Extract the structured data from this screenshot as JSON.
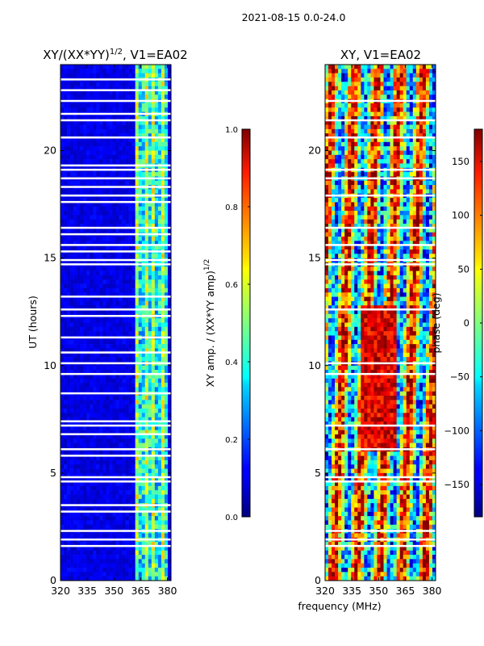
{
  "suptitle": "2021-08-15 0.0-24.0",
  "chart_data": [
    {
      "type": "heatmap",
      "title_main": "XY/(XX*YY)",
      "title_sup": "1/2",
      "title_tail": ", V1=EA02",
      "ylabel": "UT (hours)",
      "xlabel": "",
      "xlim": [
        320,
        382
      ],
      "ylim": [
        0,
        24
      ],
      "xticks": [
        "320",
        "335",
        "350",
        "365",
        "380"
      ],
      "xtick_values": [
        320,
        335,
        350,
        365,
        380
      ],
      "yticks": [
        "0",
        "5",
        "10",
        "15",
        "20"
      ],
      "ytick_values": [
        0,
        5,
        10,
        15,
        20
      ],
      "colorbar": {
        "label_main": "XY amp. / (XX*YY amp)",
        "label_sup": "1/2",
        "range": [
          0.0,
          1.0
        ],
        "ticks": [
          "0.0",
          "0.2",
          "0.4",
          "0.6",
          "0.8",
          "1.0"
        ],
        "tick_values": [
          0.0,
          0.2,
          0.4,
          0.6,
          0.8,
          1.0
        ]
      },
      "flagged_hours": [
        1.6,
        1.9,
        2.3,
        3.2,
        3.5,
        4.6,
        4.8,
        5.8,
        6.1,
        6.8,
        7.2,
        7.4,
        8.7,
        9.6,
        10.1,
        10.6,
        11.3,
        12.3,
        12.6,
        13.2,
        14.7,
        14.9,
        15.3,
        15.6,
        16.1,
        16.4,
        17.6,
        17.9,
        18.3,
        18.7,
        19.1,
        19.3,
        20.6,
        21.4,
        21.7,
        22.3,
        22.8,
        23.3
      ]
    },
    {
      "type": "heatmap",
      "title_main": "XY, V1=EA02",
      "ylabel": "",
      "xlabel": "frequency (MHz)",
      "xlim": [
        320,
        382
      ],
      "ylim": [
        0,
        24
      ],
      "xticks": [
        "320",
        "335",
        "350",
        "365",
        "380"
      ],
      "xtick_values": [
        320,
        335,
        350,
        365,
        380
      ],
      "yticks": [
        "0",
        "5",
        "10",
        "15",
        "20"
      ],
      "ytick_values": [
        0,
        5,
        10,
        15,
        20
      ],
      "colorbar": {
        "label_main": "phase (deg)",
        "range": [
          -180,
          180
        ],
        "ticks": [
          "−150",
          "−100",
          "−50",
          "0",
          "50",
          "100",
          "150"
        ],
        "tick_values": [
          -150,
          -100,
          -50,
          0,
          50,
          100,
          150
        ]
      },
      "flagged_hours": [
        1.6,
        1.9,
        2.3,
        4.6,
        4.8,
        6.1,
        7.2,
        9.6,
        10.1,
        12.6,
        14.7,
        14.9,
        15.6,
        16.4,
        17.9,
        18.7,
        19.1,
        20.6,
        21.4,
        22.3
      ]
    }
  ]
}
